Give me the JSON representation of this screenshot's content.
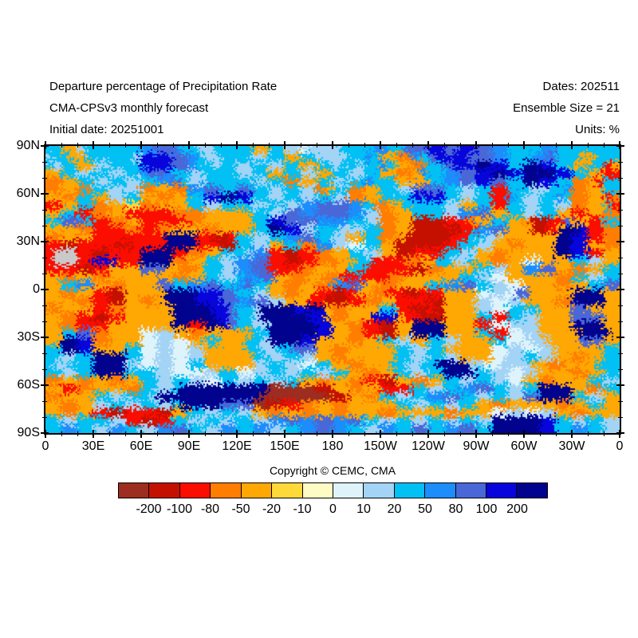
{
  "chart_data": {
    "type": "heatmap",
    "title": "Departure percentage of Precipitation Rate",
    "subtitle": "CMA-CPSv3 monthly forecast",
    "initial_date_label": "Initial date: 20251001",
    "dates_label": "Dates: 202511",
    "ensemble_label": "Ensemble Size = 21",
    "units_label": "Units: %",
    "copyright": "Copyright © CEMC, CMA",
    "x_tick_labels": [
      "0",
      "30E",
      "60E",
      "90E",
      "120E",
      "150E",
      "180",
      "150W",
      "120W",
      "90W",
      "60W",
      "30W",
      "0"
    ],
    "y_tick_labels": [
      "90N",
      "60N",
      "30N",
      "0",
      "30S",
      "60S",
      "90S"
    ],
    "lon_range": [
      0,
      360
    ],
    "lat_range": [
      90,
      -90
    ],
    "minor_tick_deg": 10,
    "major_tick_deg": 30,
    "colorbar_levels": [
      "-200",
      "-100",
      "-80",
      "-50",
      "-20",
      "-10",
      "0",
      "10",
      "20",
      "50",
      "80",
      "100",
      "200"
    ],
    "colorbar_colors": [
      "#9d2c21",
      "#c51000",
      "#fb0d00",
      "#ff7d00",
      "#ffa702",
      "#ffd83a",
      "#fefbc5",
      "#def3fa",
      "#a3d3f5",
      "#00c0f4",
      "#1c8dfb",
      "#4a67d8",
      "#0705dc",
      "#01028e"
    ],
    "missing_color": "#c9c9c9",
    "palette_keys": "0123456789abcd",
    "grid_cols": 72,
    "grid_rows_count": 36,
    "grid_rows": [
      "994489999999aabba998899999449988788889999aa99bbbccbbccbbaa9999aa99999999",
      "899449999998ccccbba988999988994499888899a94433a9bccccbbbaa999aab99944999",
      "989944889999ccccbba99899889988994499899899a9443399bcccddcc99ddcc99449924",
      "449988998899abba9988999988994499884499889944334a99aabbccddccddddcc994422",
      "33449988998899aab98899999988993344998899a999444499aabbccbb99ddcc99334299",
      "334433998888334433aabb99bb99889988349933449988bbbb998899229998899a334499",
      "44339944889944334499ccddcc99889988998833449999cccc99889922a98899a9334423",
      "22449933445533444499889999889988aabbbbaa93344999998844992299889988334492",
      "449922334422222233334444449988bbaabbbbaa883344999988aabb4499889944224433",
      "99bbb92233442222223344444499ccbbbbaaaa9988334411112223449944311​22b442299",
      "4444332222332233444433444499ddcc8899988899334411111122aabb4441124ddc2233",
      "334444222222222dddd22112998899aabb99884499334111111229988444444​4ddcc2233",
      "221122222112222dddd222119988449933aa887799441111112299884433444​4ddcc4433",
      "2ggg22112222dddd2233449998aa22112233449988441122229988443344444​4ddcc2244",
      "2ggg22ccc222dddd33449988aabb2211223334499222233449988944334477​4444998844",
      "222211224444bbb443349988aabb2222334444992222221133444499884 4aabb44334499",
      "4433443344444444334499889aabb4433443322222233444444499887744444433998899",
      "4499aa44334444bb99aabb99ab9944334433aabb4433444499aabb9988774444334499bb",
      "443344221144444ddddcccbb99884433442211244332211222444477887bb44444dddd44",
      "444433221144334ddddcccbbaabb884442211122334422221144448877884444​33dddd44",
      "3344442233444444dddddccb998ddddccdd43344449922112144448877999944​44bb4444",
      "4433221122444444dddddccb998ddddddcc433444ccc4221114444992299884444bbbb44",
      "4433222244444444dd22ddcb9988ddddddcc4433221144dddd44442277888844​44dddd44",
      "4499bb3344447788443344444499ddddddcc4433221144dddd44449922778844​444dddd4",
      "44ddcc3344447788774499444998ddddcc44443344998844998844449977788​4444bbb44",
      "99ddcc4444997788778844444998899bbb44334444449988994444447788778​844444499",
      "998899dddd99778877884444449988998844334444449988998844447788998​844334499",
      "988999dddd887788779944444488998877994433444998899dddd887788884433444499",
      "998899dddd999988777788997788998899889944334499889 9dddd998877884444334499",
      "334433443344998899887799889988994433443322114433449988998877443344449988",
      "44223344443399889dddddddd ddd00000011443344222299889 9aabb998899dddd443399",
      "33444499889998ddddddddddddd000000000114433998899aabb99889988bbdddd998844",
      "44334488998899889dddddbbbb00112233443344444499889988994433444444​33449944",
      "443344221122221144998899884433443344334444334444443344447788778​844334444",
      "9988999988221122998899889988aabbaabbaabb998899889988998 8ddddddcc99889988",
      "99aa9988aa9988aabb9988aa99aa8899aabbaa9988aa99bb99aabb99ddddddcc99aa9988"
    ]
  }
}
